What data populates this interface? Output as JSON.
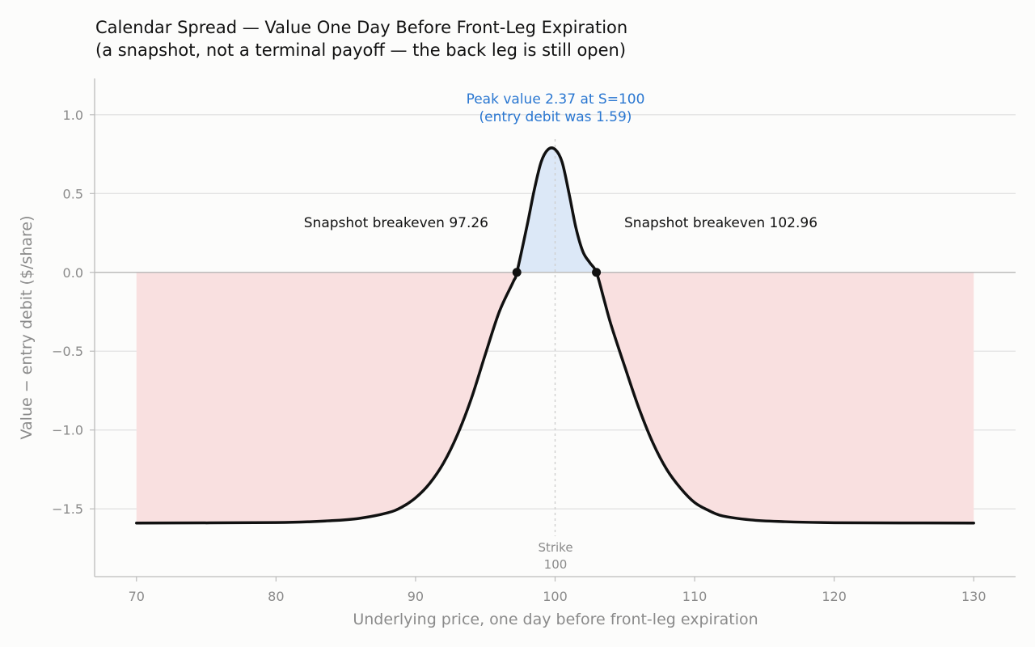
{
  "chart_data": {
    "type": "line",
    "title": "Calendar Spread — Value One Day Before Front-Leg Expiration",
    "subtitle": "(a snapshot, not a terminal payoff — the back leg is still open)",
    "xlabel": "Underlying price, one day before front-leg expiration",
    "ylabel": "Value − entry debit ($/share)",
    "xlim": [
      67,
      133
    ],
    "ylim": [
      -1.93,
      1.23
    ],
    "x_ticks": [
      70,
      80,
      90,
      100,
      110,
      120,
      130
    ],
    "y_ticks": [
      1.0,
      0.5,
      0.0,
      -0.5,
      -1.0,
      -1.5
    ],
    "x_tick_labels": [
      "70",
      "80",
      "90",
      "100",
      "110",
      "120",
      "130"
    ],
    "y_tick_labels": [
      "1.0",
      "0.5",
      "0.0",
      "−0.5",
      "−1.0",
      "−1.5"
    ],
    "grid": "horizontal",
    "series": [
      {
        "x": [
          70,
          80,
          84,
          86,
          88,
          89,
          90,
          91,
          92,
          93,
          94,
          95,
          96,
          97,
          97.26,
          98,
          98.5,
          99,
          99.5,
          100,
          100.5,
          101,
          101.5,
          102,
          102.5,
          102.96,
          103.5,
          104,
          105,
          106,
          107,
          108,
          109,
          110,
          111,
          112,
          114,
          116,
          120,
          130
        ],
        "y": [
          -1.59,
          -1.587,
          -1.575,
          -1.56,
          -1.525,
          -1.49,
          -1.43,
          -1.34,
          -1.21,
          -1.03,
          -0.8,
          -0.52,
          -0.25,
          -0.06,
          0.0,
          0.3,
          0.52,
          0.7,
          0.78,
          0.78,
          0.7,
          0.5,
          0.28,
          0.13,
          0.06,
          0.0,
          -0.17,
          -0.33,
          -0.6,
          -0.86,
          -1.08,
          -1.25,
          -1.37,
          -1.46,
          -1.51,
          -1.545,
          -1.57,
          -1.58,
          -1.588,
          -1.59
        ]
      }
    ],
    "strike": {
      "x": 100,
      "label_line1": "Strike",
      "label_line2": "100"
    },
    "breakevens": [
      97.26,
      102.96
    ],
    "annotations": {
      "breakeven_left": "Snapshot breakeven 97.26",
      "breakeven_right": "Snapshot breakeven 102.96",
      "peak_line1": "Peak value 2.37 at S=100",
      "peak_line2": "(entry debit was 1.59)"
    },
    "colors": {
      "line": "#111111",
      "profit_fill": "#dce8f7",
      "loss_fill": "#f9e0e0",
      "peak_text": "#2a77d1",
      "grid": "#e2e2e2",
      "axis": "#bbbbbb"
    }
  }
}
